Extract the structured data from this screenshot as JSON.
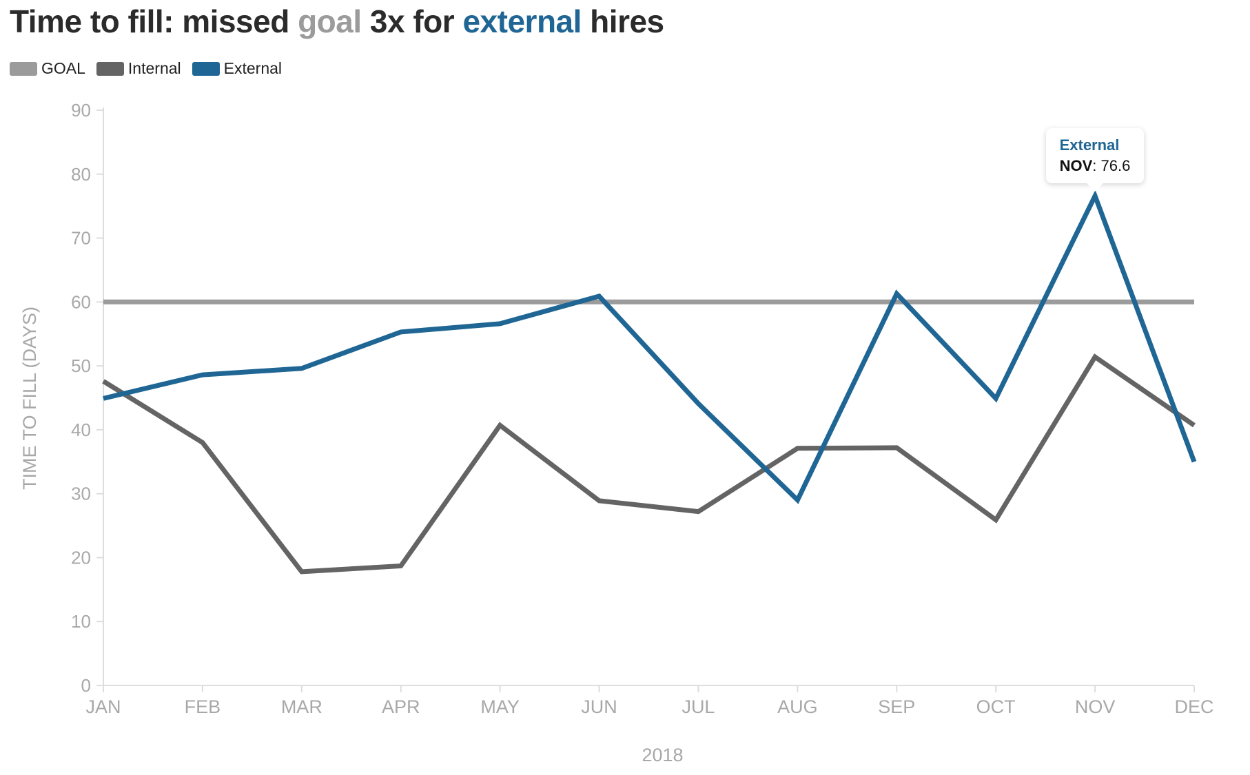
{
  "title": {
    "part1": "Time to fill: missed ",
    "goal_word": "goal",
    "part2": " 3x for ",
    "external_word": "external",
    "part3": " hires"
  },
  "legend": [
    {
      "label": "GOAL",
      "color": "#9b9b9b"
    },
    {
      "label": "Internal",
      "color": "#646464"
    },
    {
      "label": "External",
      "color": "#1f6695"
    }
  ],
  "tooltip": {
    "series": "External",
    "month": "NOV",
    "value": ": 76.6"
  },
  "chart_data": {
    "type": "line",
    "categories": [
      "JAN",
      "FEB",
      "MAR",
      "APR",
      "MAY",
      "JUN",
      "JUL",
      "AUG",
      "SEP",
      "OCT",
      "NOV",
      "DEC"
    ],
    "xlabel": "2018",
    "ylabel": "TIME TO FILL (DAYS)",
    "ylim": [
      0,
      90
    ],
    "yticks": [
      0,
      10,
      20,
      30,
      40,
      50,
      60,
      70,
      80,
      90
    ],
    "goal": 60,
    "series": [
      {
        "name": "GOAL",
        "color": "#9b9b9b",
        "values": [
          60,
          60,
          60,
          60,
          60,
          60,
          60,
          60,
          60,
          60,
          60,
          60
        ]
      },
      {
        "name": "Internal",
        "color": "#646464",
        "values": [
          47.6,
          38.0,
          17.8,
          18.7,
          40.7,
          28.9,
          27.2,
          37.1,
          37.2,
          25.9,
          51.4,
          40.7
        ]
      },
      {
        "name": "External",
        "color": "#1f6695",
        "values": [
          44.9,
          48.6,
          49.6,
          55.3,
          56.6,
          60.9,
          44.1,
          29.0,
          61.3,
          44.9,
          76.6,
          35.0
        ]
      }
    ],
    "grid": false,
    "legend_position": "top-left"
  }
}
